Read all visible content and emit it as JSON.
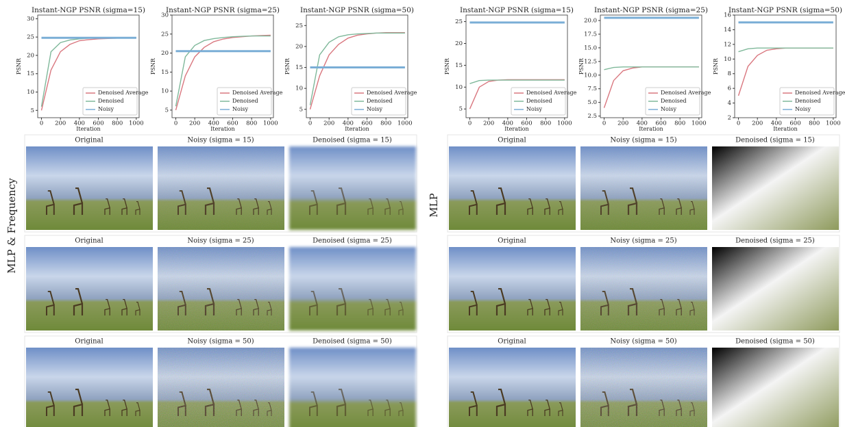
{
  "chart_data": [
    {
      "type": "line",
      "title": "Instant-NGP PSNR (sigma=15)",
      "xlabel": "Iteration",
      "ylabel": "PSNR",
      "x": [
        0,
        100,
        200,
        300,
        400,
        500,
        600,
        700,
        800,
        900,
        1000
      ],
      "xlim": [
        -40,
        1030
      ],
      "xticks": [
        0,
        200,
        400,
        600,
        800,
        1000
      ],
      "ylim": [
        3,
        31
      ],
      "yticks": [
        5,
        10,
        15,
        20,
        25,
        30
      ],
      "legend": "lower right",
      "series": [
        {
          "name": "Denoised Average",
          "color": "#d9777f",
          "values": [
            5,
            16,
            21,
            23,
            24,
            24.3,
            24.5,
            24.6,
            24.7,
            24.8,
            24.8
          ]
        },
        {
          "name": "Denoised",
          "color": "#7fb89a",
          "values": [
            6,
            21,
            23.5,
            24.2,
            24.5,
            24.7,
            24.8,
            24.8,
            24.9,
            24.9,
            24.9
          ]
        },
        {
          "name": "Noisy",
          "color": "#7aaed6",
          "values": [
            24.8,
            24.8,
            24.8,
            24.8,
            24.8,
            24.8,
            24.8,
            24.8,
            24.8,
            24.8,
            24.8
          ]
        }
      ]
    },
    {
      "type": "line",
      "title": "Instant-NGP PSNR (sigma=25)",
      "xlabel": "Iteration",
      "ylabel": "PSNR",
      "x": [
        0,
        100,
        200,
        300,
        400,
        500,
        600,
        700,
        800,
        900,
        1000
      ],
      "xlim": [
        -40,
        1030
      ],
      "xticks": [
        0,
        200,
        400,
        600,
        800,
        1000
      ],
      "ylim": [
        3,
        30
      ],
      "yticks": [
        5,
        10,
        15,
        20,
        25,
        30
      ],
      "legend": "lower right",
      "series": [
        {
          "name": "Denoised Average",
          "color": "#d9777f",
          "values": [
            5,
            14,
            19,
            21.5,
            23,
            23.7,
            24.1,
            24.3,
            24.5,
            24.6,
            24.7
          ]
        },
        {
          "name": "Denoised",
          "color": "#7fb89a",
          "values": [
            6,
            19,
            22,
            23.3,
            23.8,
            24.1,
            24.3,
            24.4,
            24.5,
            24.5,
            24.5
          ]
        },
        {
          "name": "Noisy",
          "color": "#7aaed6",
          "values": [
            20.5,
            20.5,
            20.5,
            20.5,
            20.5,
            20.5,
            20.5,
            20.5,
            20.5,
            20.5,
            20.5
          ]
        }
      ]
    },
    {
      "type": "line",
      "title": "Instant-NGP PSNR (sigma=50)",
      "xlabel": "Iteration",
      "ylabel": "PSNR",
      "x": [
        0,
        100,
        200,
        300,
        400,
        500,
        600,
        700,
        800,
        900,
        1000
      ],
      "xlim": [
        -40,
        1030
      ],
      "xticks": [
        0,
        200,
        400,
        600,
        800,
        1000
      ],
      "ylim": [
        3,
        27.5
      ],
      "yticks": [
        5,
        10,
        15,
        20,
        25
      ],
      "legend": "lower right",
      "series": [
        {
          "name": "Denoised Average",
          "color": "#d9777f",
          "values": [
            5,
            13,
            18,
            20.5,
            22,
            22.7,
            23,
            23.2,
            23.3,
            23.3,
            23.3
          ]
        },
        {
          "name": "Denoised",
          "color": "#7fb89a",
          "values": [
            6,
            18,
            21,
            22.3,
            22.8,
            23,
            23.1,
            23.2,
            23.2,
            23.2,
            23.2
          ]
        },
        {
          "name": "Noisy",
          "color": "#7aaed6",
          "values": [
            15,
            15,
            15,
            15,
            15,
            15,
            15,
            15,
            15,
            15,
            15
          ]
        }
      ]
    },
    {
      "type": "line",
      "title": "Instant-NGP PSNR (sigma=15)",
      "xlabel": "Iteration",
      "ylabel": "PSNR",
      "x": [
        0,
        100,
        200,
        300,
        400,
        500,
        600,
        700,
        800,
        900,
        1000
      ],
      "xlim": [
        -40,
        1030
      ],
      "xticks": [
        0,
        200,
        400,
        600,
        800,
        1000
      ],
      "ylim": [
        3,
        26.5
      ],
      "yticks": [
        5,
        10,
        15,
        20,
        25
      ],
      "legend": "lower right",
      "series": [
        {
          "name": "Denoised Average",
          "color": "#d9777f",
          "values": [
            5,
            10,
            11.3,
            11.6,
            11.7,
            11.7,
            11.7,
            11.7,
            11.7,
            11.7,
            11.7
          ]
        },
        {
          "name": "Denoised",
          "color": "#7fb89a",
          "values": [
            10.8,
            11.5,
            11.6,
            11.6,
            11.6,
            11.6,
            11.6,
            11.6,
            11.6,
            11.6,
            11.6
          ]
        },
        {
          "name": "Noisy",
          "color": "#7aaed6",
          "values": [
            24.8,
            24.8,
            24.8,
            24.8,
            24.8,
            24.8,
            24.8,
            24.8,
            24.8,
            24.8,
            24.8
          ]
        }
      ]
    },
    {
      "type": "line",
      "title": "Instant-NGP PSNR (sigma=25)",
      "xlabel": "Iteration",
      "ylabel": "PSNR",
      "x": [
        0,
        100,
        200,
        300,
        400,
        500,
        600,
        700,
        800,
        900,
        1000
      ],
      "xlim": [
        -40,
        1030
      ],
      "xticks": [
        0,
        200,
        400,
        600,
        800,
        1000
      ],
      "ylim": [
        2.2,
        21
      ],
      "yticks": [
        {
          "value": 2.5,
          "label": "2.5"
        },
        {
          "value": 5,
          "label": "5.0"
        },
        {
          "value": 7.5,
          "label": "7.5"
        },
        {
          "value": 10,
          "label": "10.0"
        },
        {
          "value": 12.5,
          "label": "12.5"
        },
        {
          "value": 15,
          "label": "15.0"
        },
        {
          "value": 17.5,
          "label": "17.5"
        },
        {
          "value": 20,
          "label": "20.0"
        }
      ],
      "legend": "lower right",
      "series": [
        {
          "name": "Denoised Average",
          "color": "#d9777f",
          "values": [
            4,
            9,
            10.8,
            11.3,
            11.5,
            11.5,
            11.5,
            11.5,
            11.5,
            11.5,
            11.5
          ]
        },
        {
          "name": "Denoised",
          "color": "#7fb89a",
          "values": [
            11,
            11.4,
            11.5,
            11.5,
            11.5,
            11.5,
            11.5,
            11.5,
            11.5,
            11.5,
            11.5
          ]
        },
        {
          "name": "Noisy",
          "color": "#7aaed6",
          "values": [
            20.5,
            20.5,
            20.5,
            20.5,
            20.5,
            20.5,
            20.5,
            20.5,
            20.5,
            20.5,
            20.5
          ]
        }
      ]
    },
    {
      "type": "line",
      "title": "Instant-NGP PSNR (sigma=50)",
      "xlabel": "Iteration",
      "ylabel": "PSNR",
      "x": [
        0,
        100,
        200,
        300,
        400,
        500,
        600,
        700,
        800,
        900,
        1000
      ],
      "xlim": [
        -40,
        1030
      ],
      "xticks": [
        0,
        200,
        400,
        600,
        800,
        1000
      ],
      "ylim": [
        2,
        16
      ],
      "yticks": [
        2,
        4,
        6,
        8,
        10,
        12,
        14,
        16
      ],
      "legend": "lower right",
      "series": [
        {
          "name": "Denoised Average",
          "color": "#d9777f",
          "values": [
            5,
            9,
            10.5,
            11.2,
            11.4,
            11.5,
            11.5,
            11.5,
            11.5,
            11.5,
            11.5
          ]
        },
        {
          "name": "Denoised",
          "color": "#7fb89a",
          "values": [
            11,
            11.4,
            11.5,
            11.5,
            11.5,
            11.5,
            11.5,
            11.5,
            11.5,
            11.5,
            11.5
          ]
        },
        {
          "name": "Noisy",
          "color": "#7aaed6",
          "values": [
            15,
            15,
            15,
            15,
            15,
            15,
            15,
            15,
            15,
            15,
            15
          ]
        }
      ]
    }
  ],
  "image_panels": [
    {
      "side_label": "MLP & Frequency",
      "rows": [
        [
          "Original",
          "Noisy (sigma = 15)",
          "Denoised (sigma = 15)"
        ],
        [
          "Original",
          "Noisy (sigma = 25)",
          "Denoised (sigma = 25)"
        ],
        [
          "Original",
          "Noisy (sigma = 50)",
          "Denoised (sigma = 50)"
        ]
      ]
    },
    {
      "side_label": "MLP",
      "rows": [
        [
          "Original",
          "Noisy (sigma = 15)",
          "Denoised (sigma = 15)"
        ],
        [
          "Original",
          "Noisy (sigma = 25)",
          "Denoised (sigma = 25)"
        ],
        [
          "Original",
          "Noisy (sigma = 50)",
          "Denoised (sigma = 50)"
        ]
      ]
    }
  ]
}
